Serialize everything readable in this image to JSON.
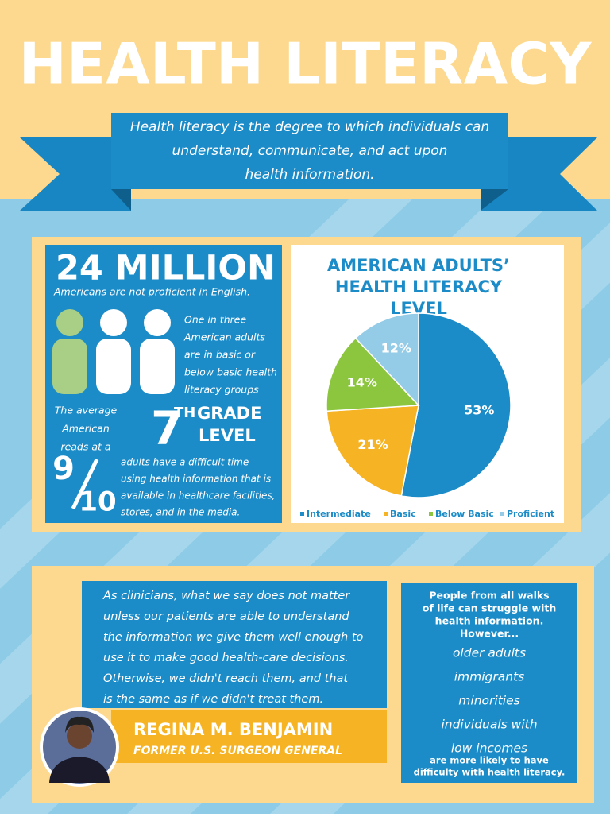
{
  "header": {
    "title": "HEALTH LITERACY",
    "definition": [
      "Health literacy is the degree to which individuals can",
      "understand, communicate, and act upon",
      "health information."
    ]
  },
  "stats": {
    "headline": "24 MILLION",
    "headline_caption": "Americans are not proficient in English.",
    "one_in_three": [
      "One in three",
      "American adults",
      "are in basic or",
      "below basic health",
      "literacy groups"
    ],
    "reads_at": [
      "The average",
      "American",
      "reads at a"
    ],
    "grade_number": "7",
    "grade_suffix": "TH",
    "grade_word": "GRADE",
    "grade_level": "LEVEL",
    "fraction_numerator": "9",
    "fraction_denominator": "10",
    "fraction_text": [
      "adults have a difficult time",
      "using health information that is",
      "available in healthcare facilities,",
      "stores, and in the media."
    ]
  },
  "chart_data": {
    "type": "pie",
    "title": [
      "AMERICAN ADULTS’",
      "HEALTH LITERACY",
      "LEVEL"
    ],
    "categories": [
      "Intermediate",
      "Basic",
      "Below Basic",
      "Proficient"
    ],
    "values": [
      53,
      21,
      14,
      12
    ],
    "value_labels": [
      "53%",
      "21%",
      "14%",
      "12%"
    ],
    "colors": [
      "#1c8cc8",
      "#f6b324",
      "#8cc63f",
      "#94cbe6"
    ],
    "legend": "bottom"
  },
  "quote": {
    "lines": [
      "As clinicians, what we say does not matter",
      "unless our patients are able to understand",
      "the information we give them well enough to",
      "use it to make good health-care decisions.",
      "Otherwise, we didn't reach them, and that",
      "is the same as if we didn't treat them."
    ],
    "author": "REGINA M. BENJAMIN",
    "role": "FORMER U.S. SURGEON GENERAL"
  },
  "walks": {
    "intro": [
      "People from all walks",
      "of life can struggle with",
      "health information.",
      "However..."
    ],
    "groups": [
      "older adults",
      "immigrants",
      "minorities",
      "individuals with",
      "low incomes"
    ],
    "outro": [
      "are more likely to have",
      "difficulty with health literacy."
    ]
  }
}
